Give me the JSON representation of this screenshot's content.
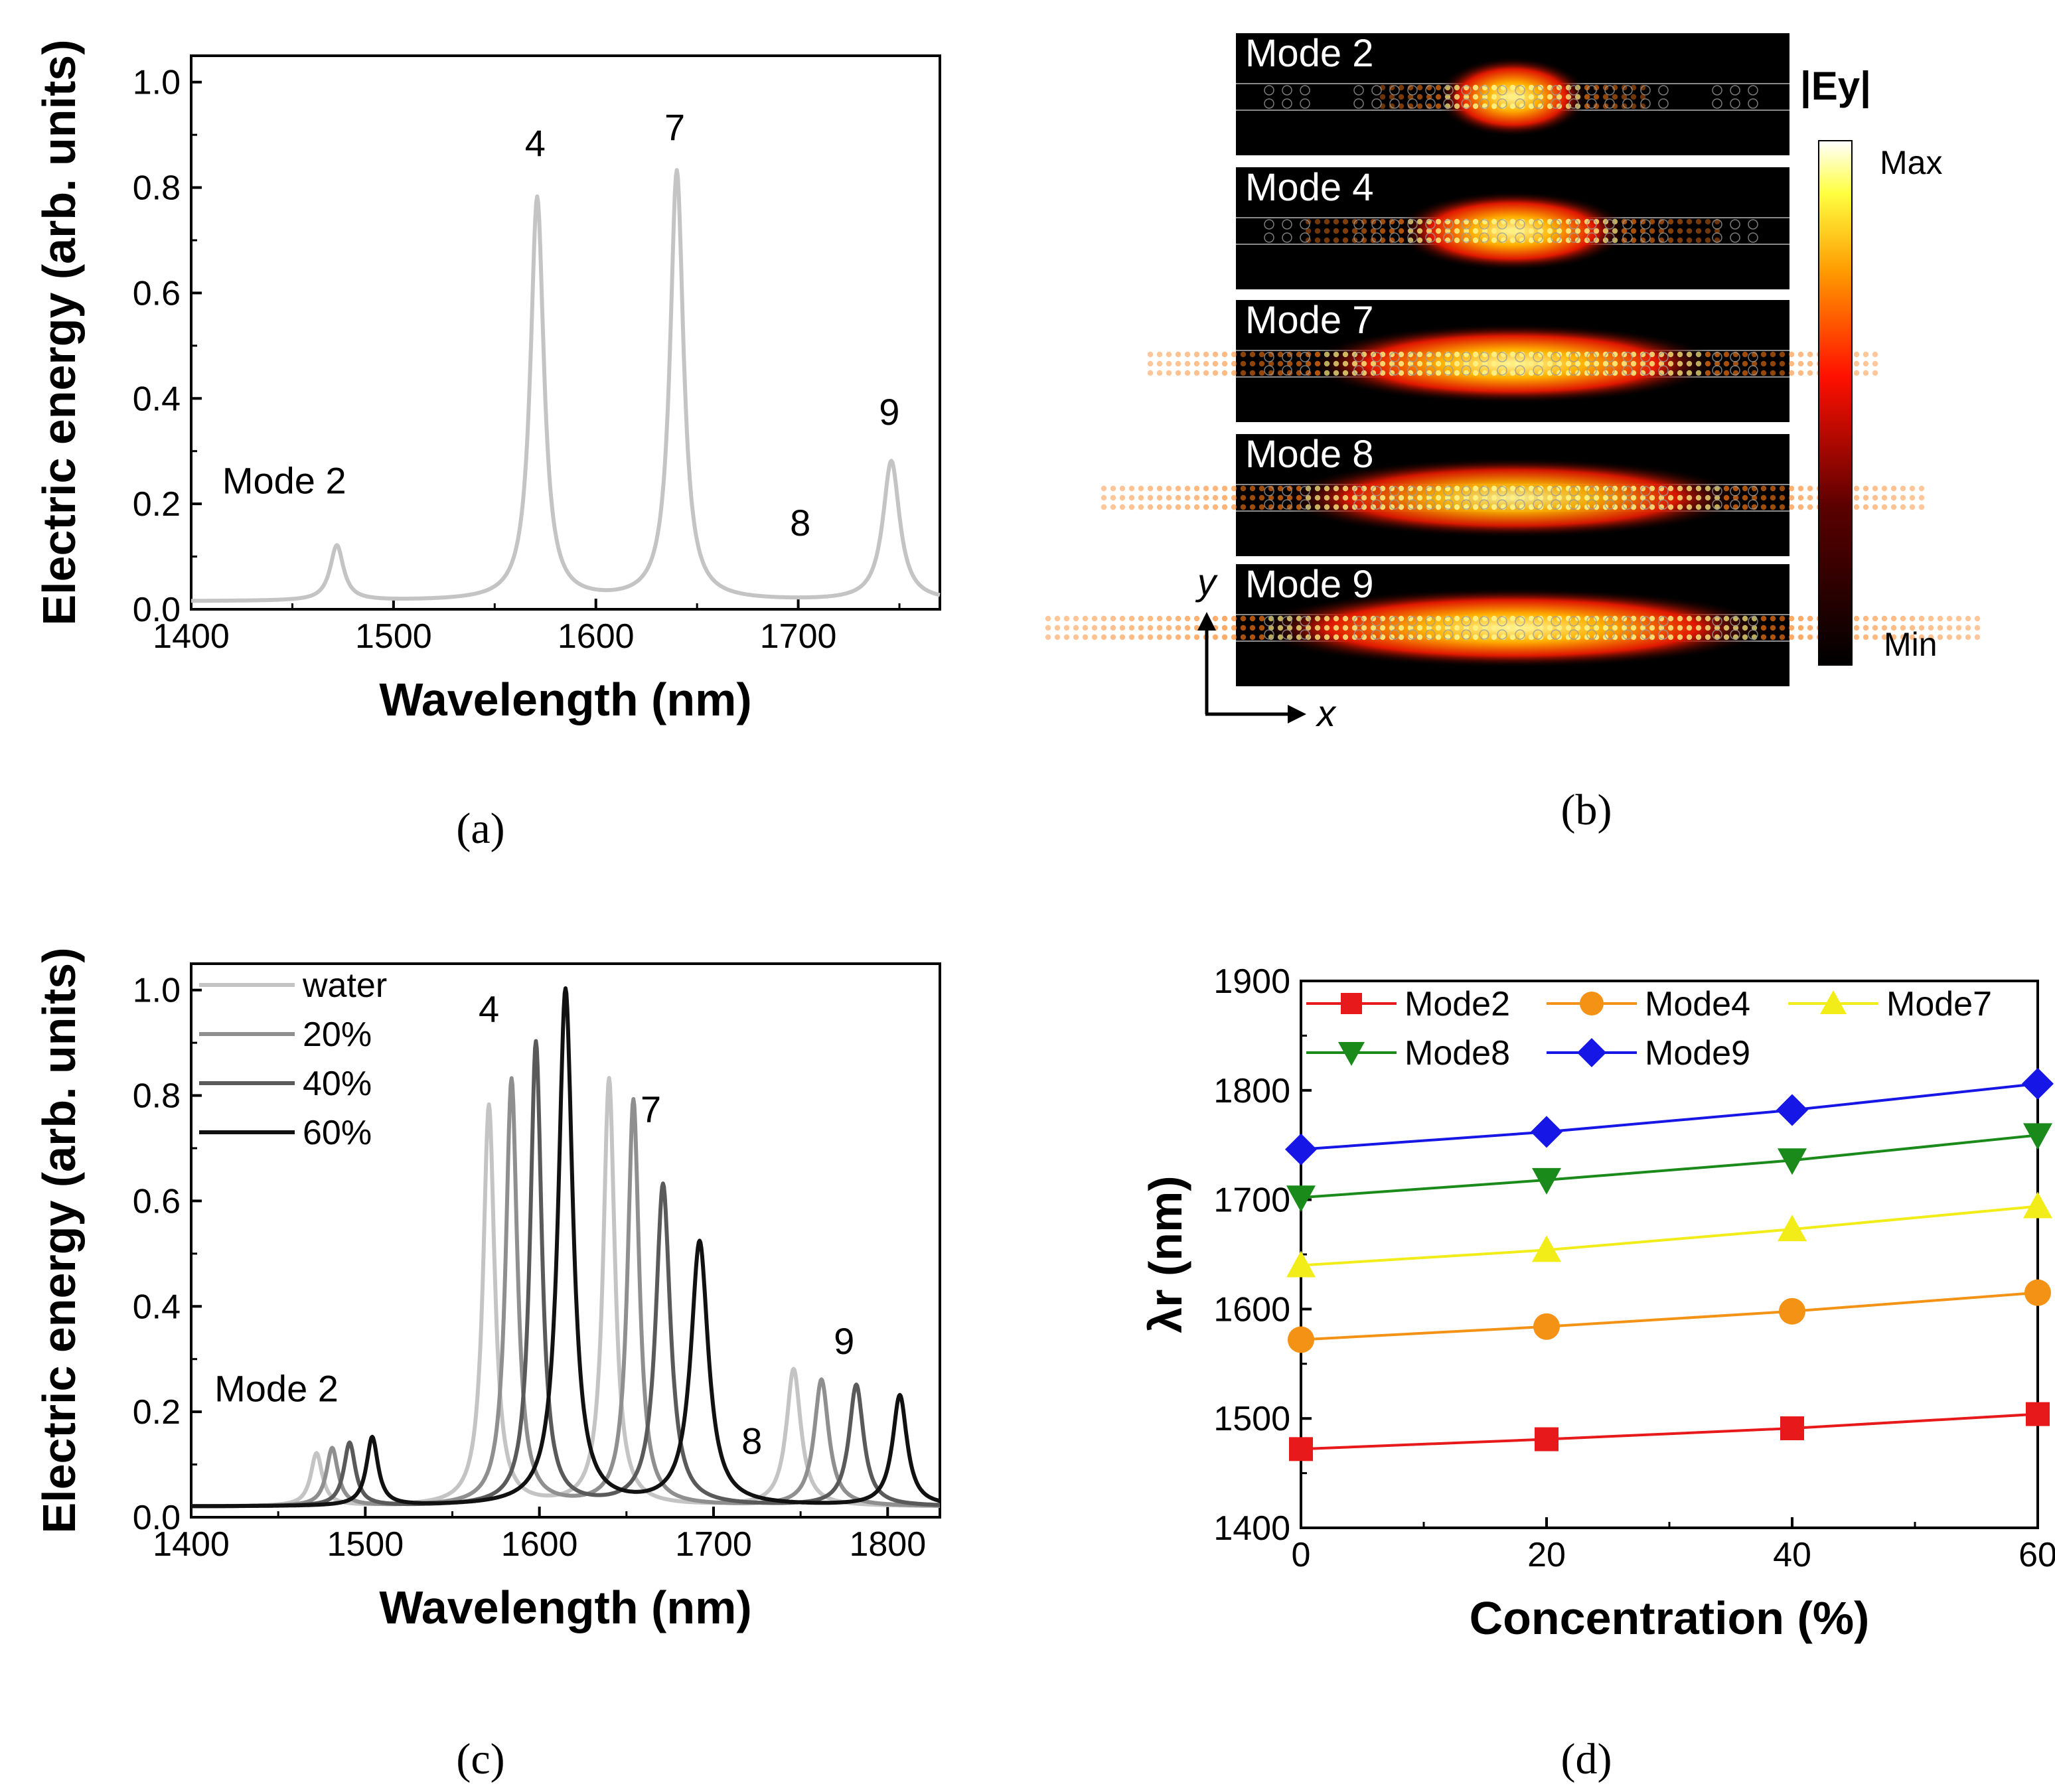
{
  "chart_data": [
    {
      "id": "a",
      "type": "line",
      "panel_label": "(a)",
      "title": "",
      "xlabel": "Wavelength (nm)",
      "ylabel": "Electric energy (arb. units)",
      "xlim": [
        1400,
        1770
      ],
      "ylim": [
        0.0,
        1.05
      ],
      "x_ticks": [
        1400,
        1500,
        1600,
        1700
      ],
      "y_ticks": [
        "0.0",
        "0.2",
        "0.4",
        "0.6",
        "0.8",
        "1.0"
      ],
      "series": [
        {
          "name": "water",
          "color": "#c4c4c4",
          "baseline": 0.015,
          "peaks": [
            {
              "x": 1472,
              "y": 0.12,
              "width": 4
            },
            {
              "x": 1571,
              "y": 0.78,
              "width": 4
            },
            {
              "x": 1640,
              "y": 0.83,
              "width": 4
            },
            {
              "x": 1702,
              "y": 0.015,
              "width": 4
            },
            {
              "x": 1746,
              "y": 0.28,
              "width": 5
            }
          ]
        }
      ],
      "annotations": [
        {
          "text": "Mode 2",
          "x": 1446,
          "y": 0.22
        },
        {
          "text": "4",
          "x": 1570,
          "y": 0.86
        },
        {
          "text": "7",
          "x": 1639,
          "y": 0.89
        },
        {
          "text": "8",
          "x": 1701,
          "y": 0.14
        },
        {
          "text": "9",
          "x": 1745,
          "y": 0.35
        }
      ]
    },
    {
      "id": "c",
      "type": "line",
      "panel_label": "(c)",
      "title": "",
      "xlabel": "Wavelength (nm)",
      "ylabel": "Electric energy (arb. units)",
      "xlim": [
        1400,
        1830
      ],
      "ylim": [
        0.0,
        1.05
      ],
      "x_ticks": [
        1400,
        1500,
        1600,
        1700,
        1800
      ],
      "y_ticks": [
        "0.0",
        "0.2",
        "0.4",
        "0.6",
        "0.8",
        "1.0"
      ],
      "legend_position": "top-left",
      "series": [
        {
          "name": "water",
          "color": "#c4c4c4",
          "baseline": 0.02,
          "peaks": [
            {
              "x": 1472,
              "y": 0.12,
              "width": 4
            },
            {
              "x": 1571,
              "y": 0.78,
              "width": 4
            },
            {
              "x": 1640,
              "y": 0.83,
              "width": 4
            },
            {
              "x": 1702,
              "y": 0.02,
              "width": 4
            },
            {
              "x": 1746,
              "y": 0.28,
              "width": 5
            }
          ]
        },
        {
          "name": "20%",
          "color": "#8f8f8f",
          "baseline": 0.02,
          "peaks": [
            {
              "x": 1481,
              "y": 0.13,
              "width": 4
            },
            {
              "x": 1584,
              "y": 0.83,
              "width": 4
            },
            {
              "x": 1654,
              "y": 0.79,
              "width": 4
            },
            {
              "x": 1718,
              "y": 0.02,
              "width": 4
            },
            {
              "x": 1762,
              "y": 0.26,
              "width": 5
            }
          ]
        },
        {
          "name": "40%",
          "color": "#5a5a5a",
          "baseline": 0.02,
          "peaks": [
            {
              "x": 1491,
              "y": 0.14,
              "width": 4
            },
            {
              "x": 1598,
              "y": 0.9,
              "width": 4
            },
            {
              "x": 1671,
              "y": 0.63,
              "width": 5
            },
            {
              "x": 1736,
              "y": 0.02,
              "width": 4
            },
            {
              "x": 1782,
              "y": 0.25,
              "width": 5
            }
          ]
        },
        {
          "name": "60%",
          "color": "#111111",
          "baseline": 0.02,
          "peaks": [
            {
              "x": 1504,
              "y": 0.15,
              "width": 4
            },
            {
              "x": 1615,
              "y": 1.0,
              "width": 5
            },
            {
              "x": 1692,
              "y": 0.52,
              "width": 6
            },
            {
              "x": 1759,
              "y": 0.02,
              "width": 4
            },
            {
              "x": 1807,
              "y": 0.23,
              "width": 5
            }
          ]
        }
      ],
      "annotations": [
        {
          "text": "Mode 2",
          "x": 1449,
          "y": 0.22
        },
        {
          "text": "4",
          "x": 1571,
          "y": 0.94
        },
        {
          "text": "7",
          "x": 1664,
          "y": 0.75
        },
        {
          "text": "8",
          "x": 1722,
          "y": 0.12
        },
        {
          "text": "9",
          "x": 1775,
          "y": 0.31
        }
      ]
    },
    {
      "id": "d",
      "type": "line",
      "panel_label": "(d)",
      "title": "",
      "xlabel": "Concentration (%)",
      "ylabel": "λr (nm)",
      "xlim": [
        0,
        60
      ],
      "ylim": [
        1400,
        1900
      ],
      "x_ticks": [
        0,
        20,
        40,
        60
      ],
      "y_ticks": [
        1400,
        1500,
        1600,
        1700,
        1800,
        1900
      ],
      "x": [
        0,
        20,
        40,
        60
      ],
      "legend_position": "top",
      "series": [
        {
          "name": "Mode2",
          "color": "#e8191b",
          "marker": "square",
          "values": [
            1472,
            1481,
            1491,
            1504
          ]
        },
        {
          "name": "Mode4",
          "color": "#f39215",
          "marker": "circle",
          "values": [
            1572,
            1584,
            1598,
            1615
          ]
        },
        {
          "name": "Mode7",
          "color": "#f2ed19",
          "marker": "triangle-up",
          "values": [
            1640,
            1654,
            1673,
            1694
          ]
        },
        {
          "name": "Mode8",
          "color": "#1a8a1a",
          "marker": "triangle-down",
          "values": [
            1702,
            1718,
            1736,
            1759
          ]
        },
        {
          "name": "Mode9",
          "color": "#1616e6",
          "marker": "diamond",
          "values": [
            1746,
            1762,
            1782,
            1806
          ]
        }
      ]
    },
    {
      "id": "b",
      "type": "heatmap",
      "panel_label": "(b)",
      "quantity_label": "|Ey|",
      "colorbar_max_label": "Max",
      "colorbar_min_label": "Min",
      "axis_x_label": "x",
      "axis_y_label": "y",
      "modes": [
        {
          "label": "Mode 2",
          "spread": 0.11,
          "peak": 1.0
        },
        {
          "label": "Mode 4",
          "spread": 0.17,
          "peak": 1.0
        },
        {
          "label": "Mode 7",
          "spread": 0.3,
          "peak": 1.0
        },
        {
          "label": "Mode 8",
          "spread": 0.34,
          "peak": 0.95
        },
        {
          "label": "Mode 9",
          "spread": 0.38,
          "peak": 1.0
        }
      ]
    }
  ]
}
